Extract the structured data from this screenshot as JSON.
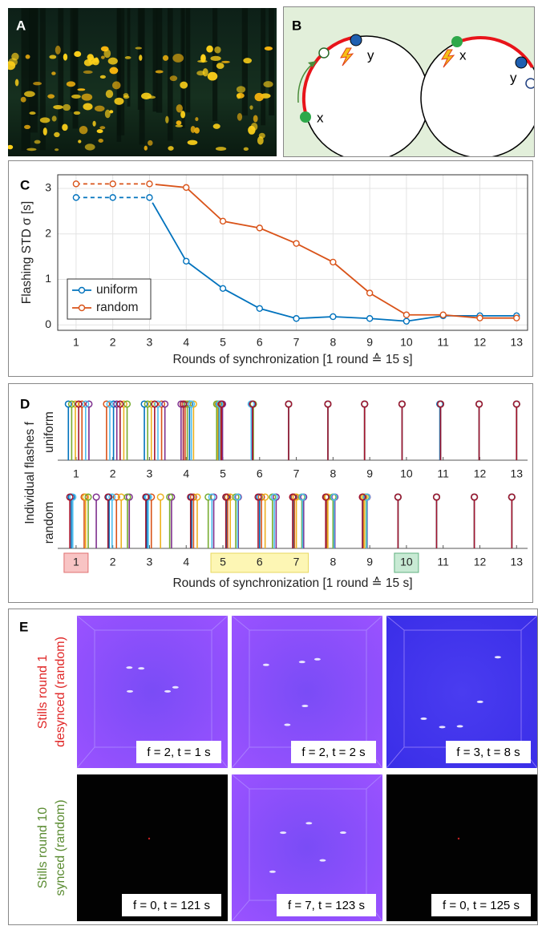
{
  "panel_a": {
    "label": "A"
  },
  "panel_b": {
    "label": "B",
    "left_labels": [
      "y",
      "x"
    ],
    "right_labels": [
      "x",
      "y"
    ]
  },
  "chart_data": [
    {
      "label": "C",
      "type": "line",
      "xlabel": "Rounds of synchronization [1 round ≙ 15 s]",
      "ylabel": "Flashing STD σ [s]",
      "x": [
        1,
        2,
        3,
        4,
        5,
        6,
        7,
        8,
        9,
        10,
        11,
        12,
        13
      ],
      "series": [
        {
          "name": "uniform",
          "color": "#0072BD",
          "values": [
            2.8,
            2.8,
            2.8,
            1.4,
            0.8,
            0.36,
            0.14,
            0.18,
            0.14,
            0.08,
            0.2,
            0.2,
            0.2
          ]
        },
        {
          "name": "random",
          "color": "#D95319",
          "values": [
            3.1,
            3.1,
            3.1,
            3.02,
            2.28,
            2.13,
            1.79,
            1.38,
            0.7,
            0.22,
            0.22,
            0.15,
            0.15
          ]
        }
      ],
      "xlim": [
        0.5,
        13.3
      ],
      "ylim": [
        -0.12,
        3.3
      ],
      "xticks": [
        1,
        2,
        3,
        4,
        5,
        6,
        7,
        8,
        9,
        10,
        11,
        12,
        13
      ],
      "yticks": [
        0,
        1,
        2,
        3
      ],
      "grid": true,
      "legend": "lower left",
      "dashed_until_x": 3
    },
    {
      "label": "D",
      "type": "event",
      "xlabel": "Rounds of synchronization [1 round ≙ 15 s]",
      "ylabel": "Individual flashes f",
      "xlim": [
        0.5,
        13.3
      ],
      "xticks": [
        1,
        2,
        3,
        4,
        5,
        6,
        7,
        8,
        9,
        10,
        11,
        12,
        13
      ],
      "panels": [
        {
          "name": "uniform",
          "series": [
            {
              "color": "#0072BD",
              "values": [
                0.79,
                2.02,
                2.86,
                4.09,
                4.88,
                5.8,
                6.79,
                7.86,
                8.86,
                9.88,
                10.91,
                11.98,
                13.0
              ]
            },
            {
              "color": "#D95319",
              "values": [
                1.16,
                1.83,
                3.33,
                3.97,
                4.94,
                5.78,
                6.79,
                7.86,
                8.86,
                9.88,
                10.93,
                11.98,
                13.0
              ]
            },
            {
              "color": "#EDB120",
              "values": [
                0.98,
                2.3,
                3.05,
                4.2,
                4.86,
                5.82,
                6.79,
                7.86,
                8.86,
                9.88,
                10.93,
                11.98,
                13.0
              ]
            },
            {
              "color": "#7E2F8E",
              "values": [
                1.35,
                2.11,
                3.42,
                3.86,
                4.99,
                5.79,
                6.79,
                7.86,
                8.86,
                9.88,
                10.93,
                11.98,
                13.0
              ]
            },
            {
              "color": "#77AC30",
              "values": [
                0.88,
                2.39,
                2.95,
                4.03,
                4.83,
                5.83,
                6.79,
                7.86,
                8.86,
                9.88,
                10.93,
                11.98,
                13.0
              ]
            },
            {
              "color": "#4DBEEE",
              "values": [
                1.26,
                1.92,
                3.23,
                4.14,
                4.91,
                5.77,
                6.79,
                7.86,
                8.86,
                9.88,
                10.93,
                11.98,
                13.0
              ]
            },
            {
              "color": "#A2142F",
              "values": [
                1.07,
                2.2,
                3.14,
                3.92,
                4.96,
                5.81,
                6.79,
                7.86,
                8.86,
                9.88,
                10.93,
                11.98,
                13.0
              ]
            }
          ]
        },
        {
          "name": "random",
          "series": [
            {
              "color": "#0072BD",
              "values": [
                0.87,
                1.9,
                2.93,
                4.15,
                5.1,
                6.0,
                6.92,
                7.82,
                8.82,
                9.77,
                10.82,
                11.85,
                12.87
              ]
            },
            {
              "color": "#D95319",
              "values": [
                1.22,
                2.1,
                3.05,
                4.2,
                5.13,
                6.05,
                6.95,
                7.84,
                8.84,
                9.77,
                10.82,
                11.85,
                12.87
              ]
            },
            {
              "color": "#EDB120",
              "values": [
                1.26,
                2.23,
                3.3,
                4.3,
                5.2,
                6.15,
                7.0,
                7.86,
                8.85,
                9.77,
                10.82,
                11.85,
                12.87
              ]
            },
            {
              "color": "#7E2F8E",
              "values": [
                1.55,
                2.45,
                3.6,
                4.75,
                5.42,
                6.45,
                7.2,
                8.05,
                8.93,
                9.77,
                10.82,
                11.85,
                12.87
              ]
            },
            {
              "color": "#77AC30",
              "values": [
                1.33,
                2.4,
                3.55,
                4.6,
                5.35,
                6.35,
                7.15,
                8.0,
                8.9,
                9.77,
                10.82,
                11.85,
                12.87
              ]
            },
            {
              "color": "#4DBEEE",
              "values": [
                0.91,
                1.98,
                2.97,
                4.7,
                5.4,
                6.4,
                7.17,
                8.03,
                8.92,
                9.77,
                10.82,
                11.85,
                12.87
              ]
            },
            {
              "color": "#A2142F",
              "values": [
                0.83,
                1.87,
                2.9,
                4.12,
                5.08,
                5.96,
                6.9,
                7.8,
                8.8,
                9.77,
                10.82,
                11.85,
                12.87
              ]
            }
          ]
        }
      ],
      "highlights": [
        {
          "from": 1,
          "to": 1,
          "color": "#f8c4c4",
          "edge": "#e07070"
        },
        {
          "from": 5,
          "to": 7,
          "color": "#fdf6b4",
          "edge": "#e8d860"
        },
        {
          "from": 10,
          "to": 10,
          "color": "#c8ead4",
          "edge": "#60b080"
        }
      ]
    }
  ],
  "panel_e": {
    "label": "E",
    "rows": [
      {
        "label_lines": [
          "Stills round 1",
          "desynced (random)"
        ],
        "color": "#e02828",
        "captions": [
          "f = 2, t = 1 s",
          "f = 2, t = 2 s",
          "f = 3, t = 8 s"
        ]
      },
      {
        "label_lines": [
          "Stills round 10",
          "synced (random)"
        ],
        "color": "#5b8c32",
        "captions": [
          "f = 0, t = 121 s",
          "f = 7, t = 123 s",
          "f = 0, t = 125 s"
        ]
      }
    ]
  }
}
